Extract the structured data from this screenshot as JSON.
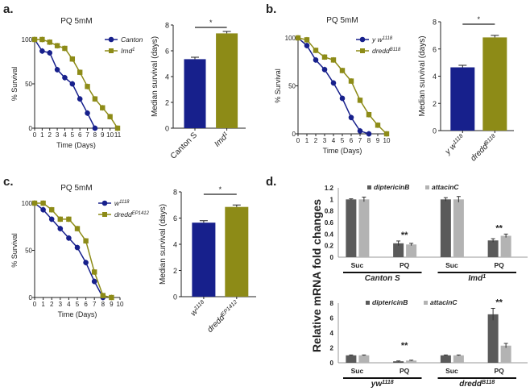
{
  "panels": [
    "a.",
    "b.",
    "c.",
    "d."
  ],
  "d_ylabel": "Relative mRNA  fold changes",
  "colors": {
    "blue": "#17208c",
    "olive": "#8d8b17",
    "dark_grey": "#5a5a5a",
    "light_grey": "#b3b3b3"
  },
  "chart_data": [
    {
      "type": "line",
      "title": "PQ 5mM",
      "xlabel": "Time (Days)",
      "ylabel": "% Survival",
      "xlim": [
        0,
        11
      ],
      "ylim": [
        0,
        100
      ],
      "yticks": [
        0,
        50,
        100
      ],
      "x": [
        0,
        1,
        2,
        3,
        4,
        5,
        6,
        7,
        8,
        9,
        10,
        11
      ],
      "series": [
        {
          "name": {
            "base": "Canton",
            "sup": ""
          },
          "color": "#17208c",
          "marker": "circle",
          "x": [
            0,
            1,
            2,
            3,
            4,
            5,
            6,
            7,
            8
          ],
          "values": [
            100,
            87,
            85,
            66,
            57,
            50,
            33,
            17,
            0
          ]
        },
        {
          "name": {
            "base": "Imd",
            "sup": "1"
          },
          "color": "#8d8b17",
          "marker": "square",
          "x": [
            0,
            1,
            2,
            3,
            4,
            5,
            6,
            7,
            8,
            9,
            10,
            11
          ],
          "values": [
            100,
            100,
            97,
            93,
            90,
            78,
            63,
            47,
            33,
            23,
            13,
            0
          ]
        }
      ]
    },
    {
      "type": "bar",
      "ylabel": "Median survival (days)",
      "ylim": [
        0,
        8
      ],
      "yticks": [
        0,
        2,
        4,
        6,
        8
      ],
      "significance": "*",
      "categories": [
        {
          "base": "Canton S",
          "sup": ""
        },
        {
          "base": "Imd",
          "sup": "1"
        }
      ],
      "values": [
        5.35,
        7.35
      ],
      "errors": [
        0.15,
        0.15
      ],
      "colors": [
        "#17208c",
        "#8d8b17"
      ]
    },
    {
      "type": "line",
      "title": "PQ 5mM",
      "xlabel": "Time (Days)",
      "ylabel": "% Survival",
      "xlim": [
        0,
        10
      ],
      "ylim": [
        0,
        100
      ],
      "yticks": [
        0,
        50,
        100
      ],
      "x": [
        0,
        1,
        2,
        3,
        4,
        5,
        6,
        7,
        8,
        9,
        10
      ],
      "series": [
        {
          "name": {
            "base": "y w",
            "sup": "1118"
          },
          "color": "#17208c",
          "marker": "circle",
          "x": [
            0,
            1,
            2,
            3,
            4,
            5,
            6,
            7,
            8
          ],
          "values": [
            100,
            92,
            77,
            67,
            53,
            37,
            17,
            3,
            0
          ]
        },
        {
          "name": {
            "base": "dredd",
            "sup": "B118"
          },
          "color": "#8d8b17",
          "marker": "square",
          "x": [
            0,
            1,
            2,
            3,
            4,
            5,
            6,
            7,
            8,
            9,
            10
          ],
          "values": [
            100,
            98,
            87,
            80,
            77,
            66,
            55,
            35,
            20,
            9,
            0
          ]
        }
      ]
    },
    {
      "type": "bar",
      "ylabel": "Median survival (days)",
      "ylim": [
        0,
        8
      ],
      "yticks": [
        0,
        2,
        4,
        6,
        8
      ],
      "significance": "*",
      "categories": [
        {
          "base": "y w",
          "sup": "1118"
        },
        {
          "base": "dredd",
          "sup": "B118"
        }
      ],
      "values": [
        4.65,
        6.85
      ],
      "errors": [
        0.15,
        0.15
      ],
      "colors": [
        "#17208c",
        "#8d8b17"
      ]
    },
    {
      "type": "line",
      "title": "PQ 5mM",
      "xlabel": "Time (Days)",
      "ylabel": "% Survival",
      "xlim": [
        0,
        10
      ],
      "ylim": [
        0,
        100
      ],
      "yticks": [
        0,
        50,
        100
      ],
      "x": [
        0,
        1,
        2,
        3,
        4,
        5,
        6,
        7,
        8,
        9,
        10
      ],
      "series": [
        {
          "name": {
            "base": "w",
            "sup": "1118"
          },
          "color": "#17208c",
          "marker": "circle",
          "x": [
            0,
            1,
            2,
            3,
            4,
            5,
            6,
            7,
            8
          ],
          "values": [
            100,
            93,
            83,
            73,
            63,
            53,
            37,
            17,
            0
          ]
        },
        {
          "name": {
            "base": "dredd",
            "sup": "EP1412"
          },
          "color": "#8d8b17",
          "marker": "square",
          "x": [
            0,
            1,
            2,
            3,
            4,
            5,
            6,
            7,
            8,
            9
          ],
          "values": [
            100,
            100,
            93,
            83,
            83,
            73,
            60,
            27,
            2,
            0
          ]
        }
      ]
    },
    {
      "type": "bar",
      "ylabel": "Median survival (days)",
      "ylim": [
        0,
        8
      ],
      "yticks": [
        0,
        2,
        4,
        6,
        8
      ],
      "significance": "*",
      "categories": [
        {
          "base": "w",
          "sup": "1118"
        },
        {
          "base": "dredd",
          "sup": "EP1412"
        }
      ],
      "values": [
        5.65,
        6.85
      ],
      "errors": [
        0.15,
        0.15
      ],
      "colors": [
        "#17208c",
        "#8d8b17"
      ]
    },
    {
      "type": "bar",
      "ylim": [
        0,
        1.2
      ],
      "yticks": [
        "0",
        "0.2",
        "0.4",
        "0.6",
        "0.8",
        "1",
        "1.2"
      ],
      "legend": [
        "diptericinB",
        "attacinC"
      ],
      "colors": [
        "#5a5a5a",
        "#b3b3b3"
      ],
      "categories": [
        "Suc",
        "PQ",
        "Suc",
        "PQ"
      ],
      "genotypes": [
        {
          "base": "Canton S",
          "sup": ""
        },
        {
          "base": "Imd",
          "sup": "1"
        }
      ],
      "significance": [
        "",
        "**",
        "",
        "**"
      ],
      "series": [
        {
          "name": "diptericinB",
          "values": [
            1.0,
            0.24,
            1.0,
            0.29
          ],
          "errors": [
            0.01,
            0.04,
            0.03,
            0.03
          ]
        },
        {
          "name": "attacinC",
          "values": [
            1.0,
            0.22,
            1.0,
            0.37
          ],
          "errors": [
            0.04,
            0.02,
            0.05,
            0.03
          ]
        }
      ]
    },
    {
      "type": "bar",
      "ylim": [
        0,
        8
      ],
      "yticks": [
        "0",
        "2",
        "4",
        "6",
        "8"
      ],
      "legend": [
        "diptericinB",
        "attacinC"
      ],
      "colors": [
        "#5a5a5a",
        "#b3b3b3"
      ],
      "categories": [
        "Suc",
        "PQ",
        "Suc",
        "PQ"
      ],
      "genotypes": [
        {
          "base": "yw",
          "sup": "1118"
        },
        {
          "base": "dredd",
          "sup": "B118"
        }
      ],
      "significance": [
        "",
        "**",
        "",
        "**"
      ],
      "series": [
        {
          "name": "diptericinB",
          "values": [
            1.0,
            0.2,
            1.0,
            6.5
          ],
          "errors": [
            0.05,
            0.05,
            0.05,
            0.8
          ]
        },
        {
          "name": "attacinC",
          "values": [
            1.0,
            0.3,
            1.0,
            2.3
          ],
          "errors": [
            0.05,
            0.05,
            0.05,
            0.3
          ]
        }
      ]
    }
  ]
}
